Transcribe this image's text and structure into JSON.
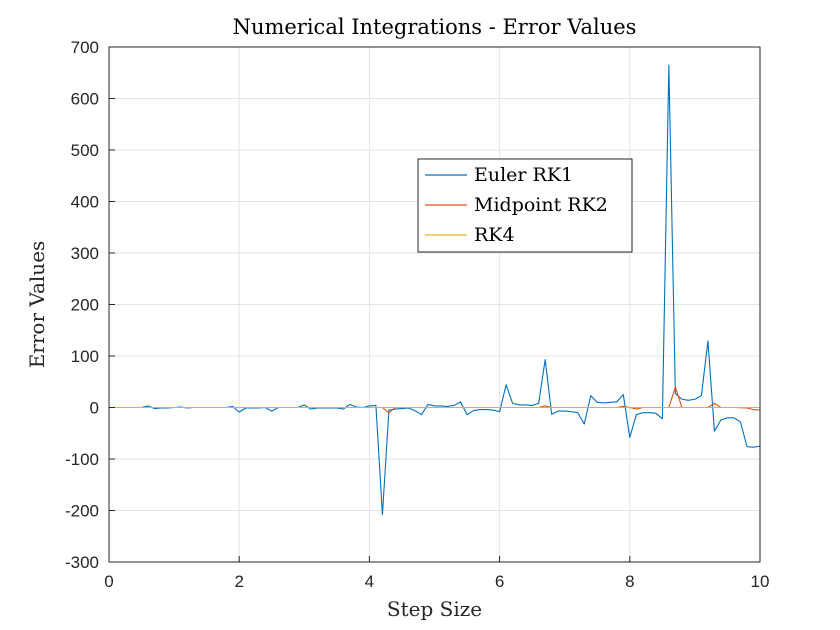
{
  "chart_data": {
    "type": "line",
    "title": "Numerical Integrations - Error Values",
    "xlabel": "Step Size",
    "ylabel": "Error Values",
    "xlim": [
      0,
      10
    ],
    "ylim": [
      -300,
      700
    ],
    "xticks": [
      0,
      2,
      4,
      6,
      8,
      10
    ],
    "yticks": [
      -300,
      -200,
      -100,
      0,
      100,
      200,
      300,
      400,
      500,
      600,
      700
    ],
    "grid": true,
    "legend_position": "upper-center-right",
    "series": [
      {
        "name": "Euler RK1",
        "color": "#0072BD",
        "x": [
          0,
          0.1,
          0.2,
          0.3,
          0.4,
          0.5,
          0.6,
          0.7,
          0.8,
          0.9,
          1.0,
          1.1,
          1.2,
          1.3,
          1.4,
          1.5,
          1.6,
          1.7,
          1.8,
          1.9,
          2.0,
          2.1,
          2.2,
          2.3,
          2.4,
          2.5,
          2.6,
          2.7,
          2.8,
          2.9,
          3.0,
          3.1,
          3.2,
          3.3,
          3.4,
          3.5,
          3.6,
          3.7,
          3.8,
          3.9,
          4.0,
          4.1,
          4.2,
          4.3,
          4.4,
          4.5,
          4.6,
          4.7,
          4.8,
          4.9,
          5.0,
          5.1,
          5.2,
          5.3,
          5.4,
          5.5,
          5.6,
          5.7,
          5.8,
          5.9,
          6.0,
          6.1,
          6.2,
          6.3,
          6.4,
          6.5,
          6.6,
          6.7,
          6.8,
          6.9,
          7.0,
          7.1,
          7.2,
          7.3,
          7.4,
          7.5,
          7.6,
          7.7,
          7.8,
          7.9,
          8.0,
          8.1,
          8.2,
          8.3,
          8.4,
          8.5,
          8.6,
          8.7,
          8.8,
          8.9,
          9.0,
          9.1,
          9.2,
          9.3,
          9.4,
          9.5,
          9.6,
          9.7,
          9.8,
          9.9,
          10.0
        ],
        "y": [
          0,
          0,
          0,
          0,
          0,
          0,
          3,
          -2,
          -1,
          -1,
          0,
          1,
          -1,
          0,
          0,
          0,
          0,
          0,
          0,
          2,
          -9,
          -1,
          -1,
          -1,
          0,
          -7,
          0,
          0,
          0,
          0,
          5,
          -3,
          -1,
          -1,
          -1,
          -1,
          -3,
          6,
          1,
          0,
          3,
          4,
          -208,
          -5,
          -3,
          -2,
          -1,
          -6,
          -14,
          6,
          3,
          3,
          2,
          4,
          11,
          -14,
          -6,
          -4,
          -4,
          -5,
          -8,
          44,
          8,
          5,
          5,
          4,
          8,
          93,
          -13,
          -7,
          -7,
          -8,
          -10,
          -32,
          23,
          10,
          9,
          10,
          11,
          25,
          -58,
          -14,
          -10,
          -10,
          -11,
          -22,
          665,
          27,
          16,
          14,
          16,
          23,
          129,
          -46,
          -24,
          -20,
          -20,
          -28,
          -76,
          -77,
          -75
        ]
      },
      {
        "name": "Midpoint RK2",
        "color": "#D95319",
        "x": [
          0,
          1,
          2,
          3,
          4,
          4.1,
          4.2,
          4.3,
          4.4,
          4.5,
          5,
          6,
          6.6,
          6.7,
          6.8,
          6.9,
          7,
          7.8,
          7.9,
          8.0,
          8.1,
          8.2,
          8.5,
          8.6,
          8.7,
          8.8,
          8.9,
          9.0,
          9.2,
          9.3,
          9.4,
          9.6,
          9.8,
          9.9,
          10.0
        ],
        "y": [
          0,
          0,
          0,
          0,
          0,
          0,
          0,
          -10,
          0,
          0,
          0,
          0,
          0,
          3,
          0,
          0,
          0,
          0,
          2,
          0,
          -3,
          0,
          0,
          0,
          40,
          0,
          0,
          0,
          0,
          8,
          0,
          0,
          -1,
          -4,
          -5
        ]
      },
      {
        "name": "RK4",
        "color": "#EDB120",
        "x": [
          0,
          10
        ],
        "y": [
          0,
          0
        ]
      }
    ]
  }
}
